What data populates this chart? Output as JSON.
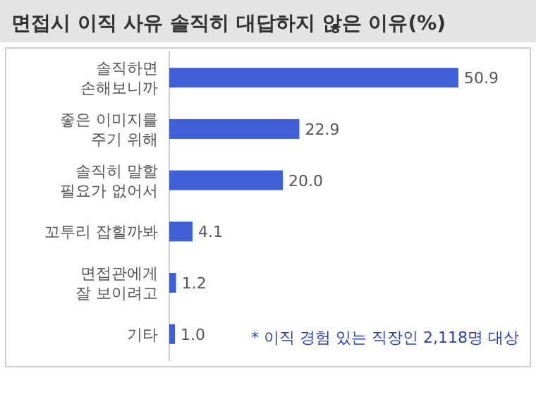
{
  "chart_data": {
    "type": "bar",
    "orientation": "horizontal",
    "title": "면접시 이직 사유 솔직히 대답하지 않은 이유(%)",
    "categories": [
      "솔직하면\n손해보니까",
      "좋은 이미지를\n주기 위해",
      "솔직히 말할\n필요가 없어서",
      "꼬투리 잡힐까봐",
      "면접관에게\n잘 보이려고",
      "기타"
    ],
    "values": [
      50.9,
      22.9,
      20.0,
      4.1,
      1.2,
      1.0
    ],
    "value_labels": [
      "50.9",
      "22.9",
      "20.0",
      "4.1",
      "1.2",
      "1.0"
    ],
    "color": "#3f5fd6",
    "annotations": [
      "* 이직 경험 있는 직장인 2,118명 대상"
    ]
  }
}
